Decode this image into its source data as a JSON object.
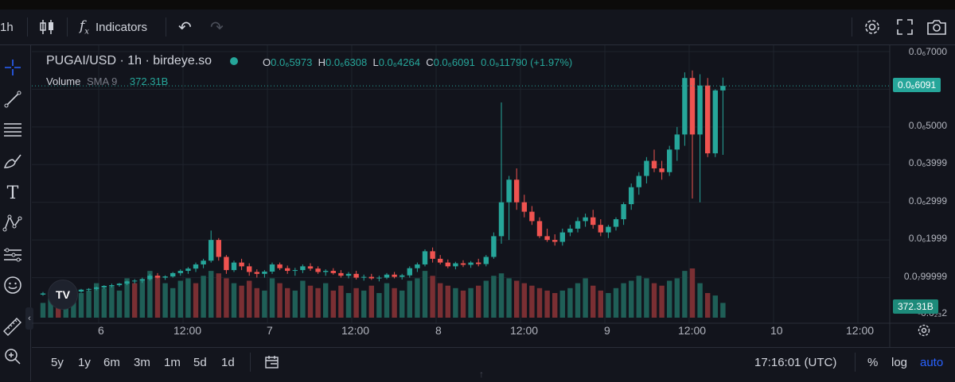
{
  "toolbar": {
    "interval": "1h",
    "indicators_label": "Indicators"
  },
  "legend": {
    "symbol": "PUGAI/USD · 1h · birdeye.so",
    "open_key": "O",
    "open": "0.0₆5973",
    "high_key": "H",
    "high": "0.0₆6308",
    "low_key": "L",
    "low": "0.0₆4264",
    "close_key": "C",
    "close": "0.0₆6091",
    "change": "0.0₉11790 (+1.97%)",
    "volume_label": "Volume",
    "volume_sma": "SMA 9",
    "volume_value": "372.31B"
  },
  "price_axis": {
    "labels": [
      "0.0₆7000",
      "0.0₆5000",
      "0.0₆3999",
      "0.0₆2999",
      "0.0₆1999",
      "0.0₇99999",
      "-0.0₂₃2"
    ],
    "current_price_badge": "0.0₆6091",
    "volume_badge": "372.31B"
  },
  "time_axis": {
    "labels": [
      "6",
      "12:00",
      "7",
      "12:00",
      "8",
      "12:00",
      "9",
      "12:00",
      "10",
      "12:00"
    ]
  },
  "bottom": {
    "ranges": [
      "5y",
      "1y",
      "6m",
      "3m",
      "1m",
      "5d",
      "1d"
    ],
    "clock": "17:16:01 (UTC)",
    "percent": "%",
    "log": "log",
    "auto": "auto"
  },
  "logo_text": "TV",
  "colors": {
    "up": "#26a69a",
    "down": "#ef5350",
    "accent": "#2962ff",
    "background": "#12141c"
  },
  "chart_data": {
    "type": "candlestick",
    "title": "PUGAI/USD · 1h · birdeye.so",
    "x_labels": [
      "6",
      "12:00",
      "7",
      "12:00",
      "8",
      "12:00",
      "9",
      "12:00",
      "10",
      "12:00"
    ],
    "y_unit": "price (×1e-6 USD)",
    "ylim": [
      0,
      7.0
    ],
    "candles": [
      {
        "o": 0.55,
        "h": 0.62,
        "l": 0.52,
        "c": 0.58
      },
      {
        "o": 0.58,
        "h": 0.65,
        "l": 0.55,
        "c": 0.6
      },
      {
        "o": 0.6,
        "h": 0.63,
        "l": 0.56,
        "c": 0.57
      },
      {
        "o": 0.57,
        "h": 0.62,
        "l": 0.55,
        "c": 0.61
      },
      {
        "o": 0.61,
        "h": 0.66,
        "l": 0.58,
        "c": 0.63
      },
      {
        "o": 0.63,
        "h": 0.7,
        "l": 0.6,
        "c": 0.68
      },
      {
        "o": 0.68,
        "h": 0.72,
        "l": 0.64,
        "c": 0.7
      },
      {
        "o": 0.7,
        "h": 0.76,
        "l": 0.66,
        "c": 0.74
      },
      {
        "o": 0.74,
        "h": 0.8,
        "l": 0.7,
        "c": 0.78
      },
      {
        "o": 0.78,
        "h": 0.84,
        "l": 0.74,
        "c": 0.8
      },
      {
        "o": 0.8,
        "h": 0.86,
        "l": 0.76,
        "c": 0.84
      },
      {
        "o": 0.84,
        "h": 0.92,
        "l": 0.8,
        "c": 0.9
      },
      {
        "o": 0.9,
        "h": 0.96,
        "l": 0.84,
        "c": 0.92
      },
      {
        "o": 0.92,
        "h": 1.0,
        "l": 0.86,
        "c": 0.96
      },
      {
        "o": 0.96,
        "h": 1.1,
        "l": 0.92,
        "c": 1.05
      },
      {
        "o": 1.05,
        "h": 1.12,
        "l": 0.98,
        "c": 1.0
      },
      {
        "o": 1.0,
        "h": 1.06,
        "l": 0.94,
        "c": 1.03
      },
      {
        "o": 1.03,
        "h": 1.15,
        "l": 1.0,
        "c": 1.12
      },
      {
        "o": 1.12,
        "h": 1.22,
        "l": 1.05,
        "c": 1.18
      },
      {
        "o": 1.18,
        "h": 1.28,
        "l": 1.1,
        "c": 1.24
      },
      {
        "o": 1.24,
        "h": 1.4,
        "l": 1.15,
        "c": 1.35
      },
      {
        "o": 1.35,
        "h": 1.5,
        "l": 1.25,
        "c": 1.45
      },
      {
        "o": 1.45,
        "h": 2.25,
        "l": 1.4,
        "c": 2.0
      },
      {
        "o": 2.0,
        "h": 2.05,
        "l": 1.45,
        "c": 1.55
      },
      {
        "o": 1.55,
        "h": 1.6,
        "l": 1.1,
        "c": 1.2
      },
      {
        "o": 1.2,
        "h": 1.45,
        "l": 1.15,
        "c": 1.4
      },
      {
        "o": 1.4,
        "h": 1.5,
        "l": 1.2,
        "c": 1.3
      },
      {
        "o": 1.3,
        "h": 1.38,
        "l": 1.05,
        "c": 1.15
      },
      {
        "o": 1.15,
        "h": 1.22,
        "l": 1.0,
        "c": 1.1
      },
      {
        "o": 1.1,
        "h": 1.2,
        "l": 1.0,
        "c": 1.16
      },
      {
        "o": 1.16,
        "h": 1.4,
        "l": 1.1,
        "c": 1.35
      },
      {
        "o": 1.35,
        "h": 1.4,
        "l": 1.2,
        "c": 1.25
      },
      {
        "o": 1.25,
        "h": 1.32,
        "l": 1.1,
        "c": 1.18
      },
      {
        "o": 1.18,
        "h": 1.26,
        "l": 1.05,
        "c": 1.2
      },
      {
        "o": 1.2,
        "h": 1.35,
        "l": 1.12,
        "c": 1.3
      },
      {
        "o": 1.3,
        "h": 1.38,
        "l": 1.18,
        "c": 1.24
      },
      {
        "o": 1.24,
        "h": 1.3,
        "l": 1.1,
        "c": 1.15
      },
      {
        "o": 1.15,
        "h": 1.22,
        "l": 1.05,
        "c": 1.18
      },
      {
        "o": 1.18,
        "h": 1.25,
        "l": 1.08,
        "c": 1.12
      },
      {
        "o": 1.12,
        "h": 1.2,
        "l": 1.0,
        "c": 1.05
      },
      {
        "o": 1.05,
        "h": 1.15,
        "l": 0.98,
        "c": 1.1
      },
      {
        "o": 1.1,
        "h": 1.18,
        "l": 0.95,
        "c": 1.0
      },
      {
        "o": 1.0,
        "h": 1.08,
        "l": 0.92,
        "c": 1.02
      },
      {
        "o": 1.02,
        "h": 1.1,
        "l": 0.94,
        "c": 0.98
      },
      {
        "o": 0.98,
        "h": 1.05,
        "l": 0.9,
        "c": 1.0
      },
      {
        "o": 1.0,
        "h": 1.12,
        "l": 0.96,
        "c": 1.08
      },
      {
        "o": 1.08,
        "h": 1.15,
        "l": 0.98,
        "c": 1.02
      },
      {
        "o": 1.02,
        "h": 1.1,
        "l": 0.95,
        "c": 1.06
      },
      {
        "o": 1.06,
        "h": 1.3,
        "l": 1.0,
        "c": 1.25
      },
      {
        "o": 1.25,
        "h": 1.4,
        "l": 1.15,
        "c": 1.35
      },
      {
        "o": 1.35,
        "h": 1.75,
        "l": 1.3,
        "c": 1.7
      },
      {
        "o": 1.7,
        "h": 1.8,
        "l": 1.4,
        "c": 1.5
      },
      {
        "o": 1.5,
        "h": 1.6,
        "l": 1.35,
        "c": 1.4
      },
      {
        "o": 1.4,
        "h": 1.48,
        "l": 1.25,
        "c": 1.3
      },
      {
        "o": 1.3,
        "h": 1.42,
        "l": 1.22,
        "c": 1.38
      },
      {
        "o": 1.38,
        "h": 1.46,
        "l": 1.28,
        "c": 1.34
      },
      {
        "o": 1.34,
        "h": 1.44,
        "l": 1.26,
        "c": 1.4
      },
      {
        "o": 1.4,
        "h": 1.5,
        "l": 1.3,
        "c": 1.36
      },
      {
        "o": 1.36,
        "h": 1.6,
        "l": 1.3,
        "c": 1.55
      },
      {
        "o": 1.55,
        "h": 2.2,
        "l": 1.5,
        "c": 2.1
      },
      {
        "o": 2.1,
        "h": 5.65,
        "l": 1.9,
        "c": 3.0
      },
      {
        "o": 3.0,
        "h": 3.7,
        "l": 2.0,
        "c": 3.6
      },
      {
        "o": 3.6,
        "h": 3.9,
        "l": 2.8,
        "c": 3.0
      },
      {
        "o": 3.0,
        "h": 3.2,
        "l": 2.6,
        "c": 2.75
      },
      {
        "o": 2.75,
        "h": 2.9,
        "l": 2.4,
        "c": 2.5
      },
      {
        "o": 2.5,
        "h": 2.6,
        "l": 2.05,
        "c": 2.1
      },
      {
        "o": 2.1,
        "h": 2.3,
        "l": 1.95,
        "c": 2.0
      },
      {
        "o": 2.0,
        "h": 2.15,
        "l": 1.85,
        "c": 1.95
      },
      {
        "o": 1.95,
        "h": 2.3,
        "l": 1.85,
        "c": 2.2
      },
      {
        "o": 2.2,
        "h": 2.4,
        "l": 2.1,
        "c": 2.3
      },
      {
        "o": 2.3,
        "h": 2.6,
        "l": 2.2,
        "c": 2.5
      },
      {
        "o": 2.5,
        "h": 2.7,
        "l": 2.35,
        "c": 2.6
      },
      {
        "o": 2.6,
        "h": 2.8,
        "l": 2.3,
        "c": 2.4
      },
      {
        "o": 2.4,
        "h": 2.55,
        "l": 2.1,
        "c": 2.2
      },
      {
        "o": 2.2,
        "h": 2.4,
        "l": 2.05,
        "c": 2.35
      },
      {
        "o": 2.35,
        "h": 2.6,
        "l": 2.25,
        "c": 2.55
      },
      {
        "o": 2.55,
        "h": 3.0,
        "l": 2.4,
        "c": 2.95
      },
      {
        "o": 2.95,
        "h": 3.5,
        "l": 2.8,
        "c": 3.4
      },
      {
        "o": 3.4,
        "h": 3.8,
        "l": 3.2,
        "c": 3.7
      },
      {
        "o": 3.7,
        "h": 4.2,
        "l": 3.5,
        "c": 4.1
      },
      {
        "o": 4.1,
        "h": 4.4,
        "l": 3.8,
        "c": 3.9
      },
      {
        "o": 3.9,
        "h": 4.1,
        "l": 3.6,
        "c": 3.8
      },
      {
        "o": 3.8,
        "h": 4.5,
        "l": 3.7,
        "c": 4.4
      },
      {
        "o": 4.4,
        "h": 5.0,
        "l": 4.1,
        "c": 4.8
      },
      {
        "o": 4.8,
        "h": 6.45,
        "l": 4.5,
        "c": 6.3
      },
      {
        "o": 6.3,
        "h": 6.5,
        "l": 3.1,
        "c": 4.8
      },
      {
        "o": 4.8,
        "h": 6.4,
        "l": 3.0,
        "c": 6.1
      },
      {
        "o": 6.1,
        "h": 6.3,
        "l": 4.2,
        "c": 4.3
      },
      {
        "o": 4.3,
        "h": 6.0,
        "l": 4.2,
        "c": 5.97
      },
      {
        "o": 5.97,
        "h": 6.31,
        "l": 4.26,
        "c": 6.09
      }
    ],
    "volume": [
      {
        "v": 0.3,
        "up": true
      },
      {
        "v": 0.4,
        "up": true
      },
      {
        "v": 0.55,
        "up": false
      },
      {
        "v": 0.45,
        "up": true
      },
      {
        "v": 0.6,
        "up": true
      },
      {
        "v": 0.5,
        "up": true
      },
      {
        "v": 0.55,
        "up": true
      },
      {
        "v": 0.7,
        "up": true
      },
      {
        "v": 0.6,
        "up": true
      },
      {
        "v": 0.65,
        "up": true
      },
      {
        "v": 0.55,
        "up": true
      },
      {
        "v": 0.8,
        "up": true
      },
      {
        "v": 0.7,
        "up": false
      },
      {
        "v": 0.75,
        "up": true
      },
      {
        "v": 0.95,
        "up": true
      },
      {
        "v": 0.85,
        "up": false
      },
      {
        "v": 0.7,
        "up": true
      },
      {
        "v": 0.6,
        "up": true
      },
      {
        "v": 0.75,
        "up": true
      },
      {
        "v": 0.8,
        "up": true
      },
      {
        "v": 0.7,
        "up": false
      },
      {
        "v": 0.85,
        "up": true
      },
      {
        "v": 0.95,
        "up": true
      },
      {
        "v": 0.9,
        "up": false
      },
      {
        "v": 0.8,
        "up": false
      },
      {
        "v": 0.7,
        "up": true
      },
      {
        "v": 0.65,
        "up": false
      },
      {
        "v": 0.75,
        "up": false
      },
      {
        "v": 0.6,
        "up": false
      },
      {
        "v": 0.55,
        "up": true
      },
      {
        "v": 0.8,
        "up": true
      },
      {
        "v": 0.7,
        "up": false
      },
      {
        "v": 0.6,
        "up": false
      },
      {
        "v": 0.55,
        "up": true
      },
      {
        "v": 0.75,
        "up": true
      },
      {
        "v": 0.65,
        "up": false
      },
      {
        "v": 0.6,
        "up": false
      },
      {
        "v": 0.7,
        "up": true
      },
      {
        "v": 0.55,
        "up": false
      },
      {
        "v": 0.65,
        "up": false
      },
      {
        "v": 0.5,
        "up": true
      },
      {
        "v": 0.6,
        "up": false
      },
      {
        "v": 0.55,
        "up": true
      },
      {
        "v": 0.65,
        "up": false
      },
      {
        "v": 0.5,
        "up": true
      },
      {
        "v": 0.7,
        "up": true
      },
      {
        "v": 0.6,
        "up": false
      },
      {
        "v": 0.55,
        "up": true
      },
      {
        "v": 0.75,
        "up": true
      },
      {
        "v": 0.8,
        "up": true
      },
      {
        "v": 0.95,
        "up": true
      },
      {
        "v": 0.85,
        "up": false
      },
      {
        "v": 0.7,
        "up": false
      },
      {
        "v": 0.65,
        "up": false
      },
      {
        "v": 0.6,
        "up": true
      },
      {
        "v": 0.55,
        "up": false
      },
      {
        "v": 0.6,
        "up": true
      },
      {
        "v": 0.65,
        "up": false
      },
      {
        "v": 0.75,
        "up": true
      },
      {
        "v": 0.85,
        "up": true
      },
      {
        "v": 0.9,
        "up": true
      },
      {
        "v": 0.8,
        "up": true
      },
      {
        "v": 0.75,
        "up": false
      },
      {
        "v": 0.7,
        "up": false
      },
      {
        "v": 0.65,
        "up": false
      },
      {
        "v": 0.6,
        "up": false
      },
      {
        "v": 0.55,
        "up": false
      },
      {
        "v": 0.5,
        "up": false
      },
      {
        "v": 0.55,
        "up": true
      },
      {
        "v": 0.6,
        "up": true
      },
      {
        "v": 0.7,
        "up": true
      },
      {
        "v": 0.8,
        "up": true
      },
      {
        "v": 0.65,
        "up": false
      },
      {
        "v": 0.55,
        "up": false
      },
      {
        "v": 0.5,
        "up": true
      },
      {
        "v": 0.6,
        "up": true
      },
      {
        "v": 0.7,
        "up": true
      },
      {
        "v": 0.75,
        "up": true
      },
      {
        "v": 0.85,
        "up": true
      },
      {
        "v": 0.8,
        "up": true
      },
      {
        "v": 0.7,
        "up": false
      },
      {
        "v": 0.65,
        "up": false
      },
      {
        "v": 0.75,
        "up": true
      },
      {
        "v": 0.8,
        "up": true
      },
      {
        "v": 0.95,
        "up": true
      },
      {
        "v": 1.0,
        "up": false
      },
      {
        "v": 0.7,
        "up": true
      },
      {
        "v": 0.5,
        "up": false
      },
      {
        "v": 0.45,
        "up": true
      },
      {
        "v": 0.3,
        "up": true
      }
    ]
  }
}
